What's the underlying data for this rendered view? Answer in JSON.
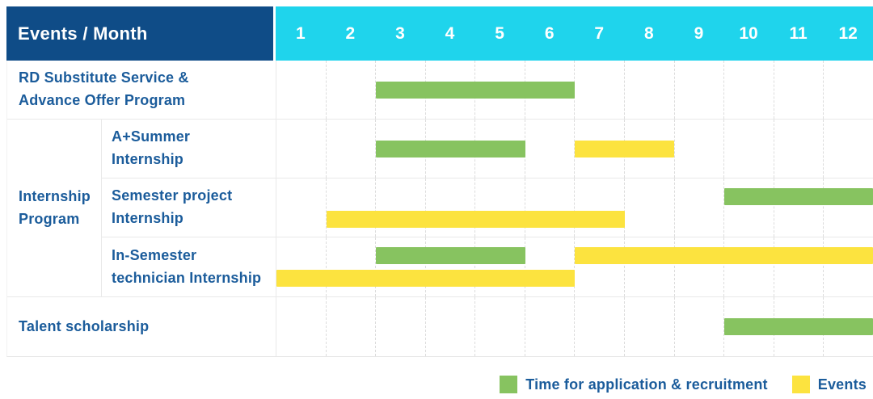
{
  "header": {
    "title": "Events / Month"
  },
  "colors": {
    "header_navy": "#0F4C87",
    "header_cyan": "#1FD4EC",
    "label_text": "#1B5C9B",
    "grid_line": "#e9e9e9",
    "bar_green": "#87C360",
    "bar_yellow": "#FCE33F"
  },
  "chart_data": {
    "type": "bar",
    "subtype": "gantt-schedule",
    "title": "Events / Month",
    "xlabel": "Month",
    "x_ticks": [
      1,
      2,
      3,
      4,
      5,
      6,
      7,
      8,
      9,
      10,
      11,
      12
    ],
    "x_range": [
      1,
      12
    ],
    "grid": "dashed-vertical-month-lines",
    "legend_position": "bottom-right",
    "months": [
      1,
      2,
      3,
      4,
      5,
      6,
      7,
      8,
      9,
      10,
      11,
      12
    ],
    "series": {
      "application": {
        "label": "Time for application & recruitment",
        "color": "#87C360"
      },
      "events": {
        "label": "Events",
        "color": "#FCE33F"
      }
    },
    "legend_order": [
      "application",
      "events"
    ],
    "rows": [
      {
        "id": "rd-substitute",
        "label": "RD Substitute Service &\nAdvance Offer Program",
        "bars": [
          {
            "series": "application",
            "start": 3,
            "end": 6,
            "lane": "center"
          }
        ]
      },
      {
        "id": "internship-program-group",
        "group_label": "Internship\nProgram",
        "children": [
          {
            "id": "a-plus-summer",
            "label": "A+Summer\nInternship",
            "bars": [
              {
                "series": "application",
                "start": 3,
                "end": 5,
                "lane": "center"
              },
              {
                "series": "events",
                "start": 7,
                "end": 8,
                "lane": "center"
              }
            ]
          },
          {
            "id": "semester-project",
            "label": "Semester project\nInternship",
            "bars": [
              {
                "series": "application",
                "start": 10,
                "end": 12,
                "lane": "top"
              },
              {
                "series": "events",
                "start": 2,
                "end": 7,
                "lane": "bottom"
              }
            ]
          },
          {
            "id": "in-semester-technician",
            "label": "In-Semester\ntechnician Internship",
            "bars": [
              {
                "series": "application",
                "start": 3,
                "end": 5,
                "lane": "top"
              },
              {
                "series": "events",
                "start": 7,
                "end": 12,
                "lane": "top"
              },
              {
                "series": "events",
                "start": 1,
                "end": 6,
                "lane": "bottom"
              }
            ]
          }
        ]
      },
      {
        "id": "talent-scholarship",
        "label": "Talent scholarship",
        "bars": [
          {
            "series": "application",
            "start": 10,
            "end": 12,
            "lane": "center"
          }
        ]
      }
    ]
  }
}
